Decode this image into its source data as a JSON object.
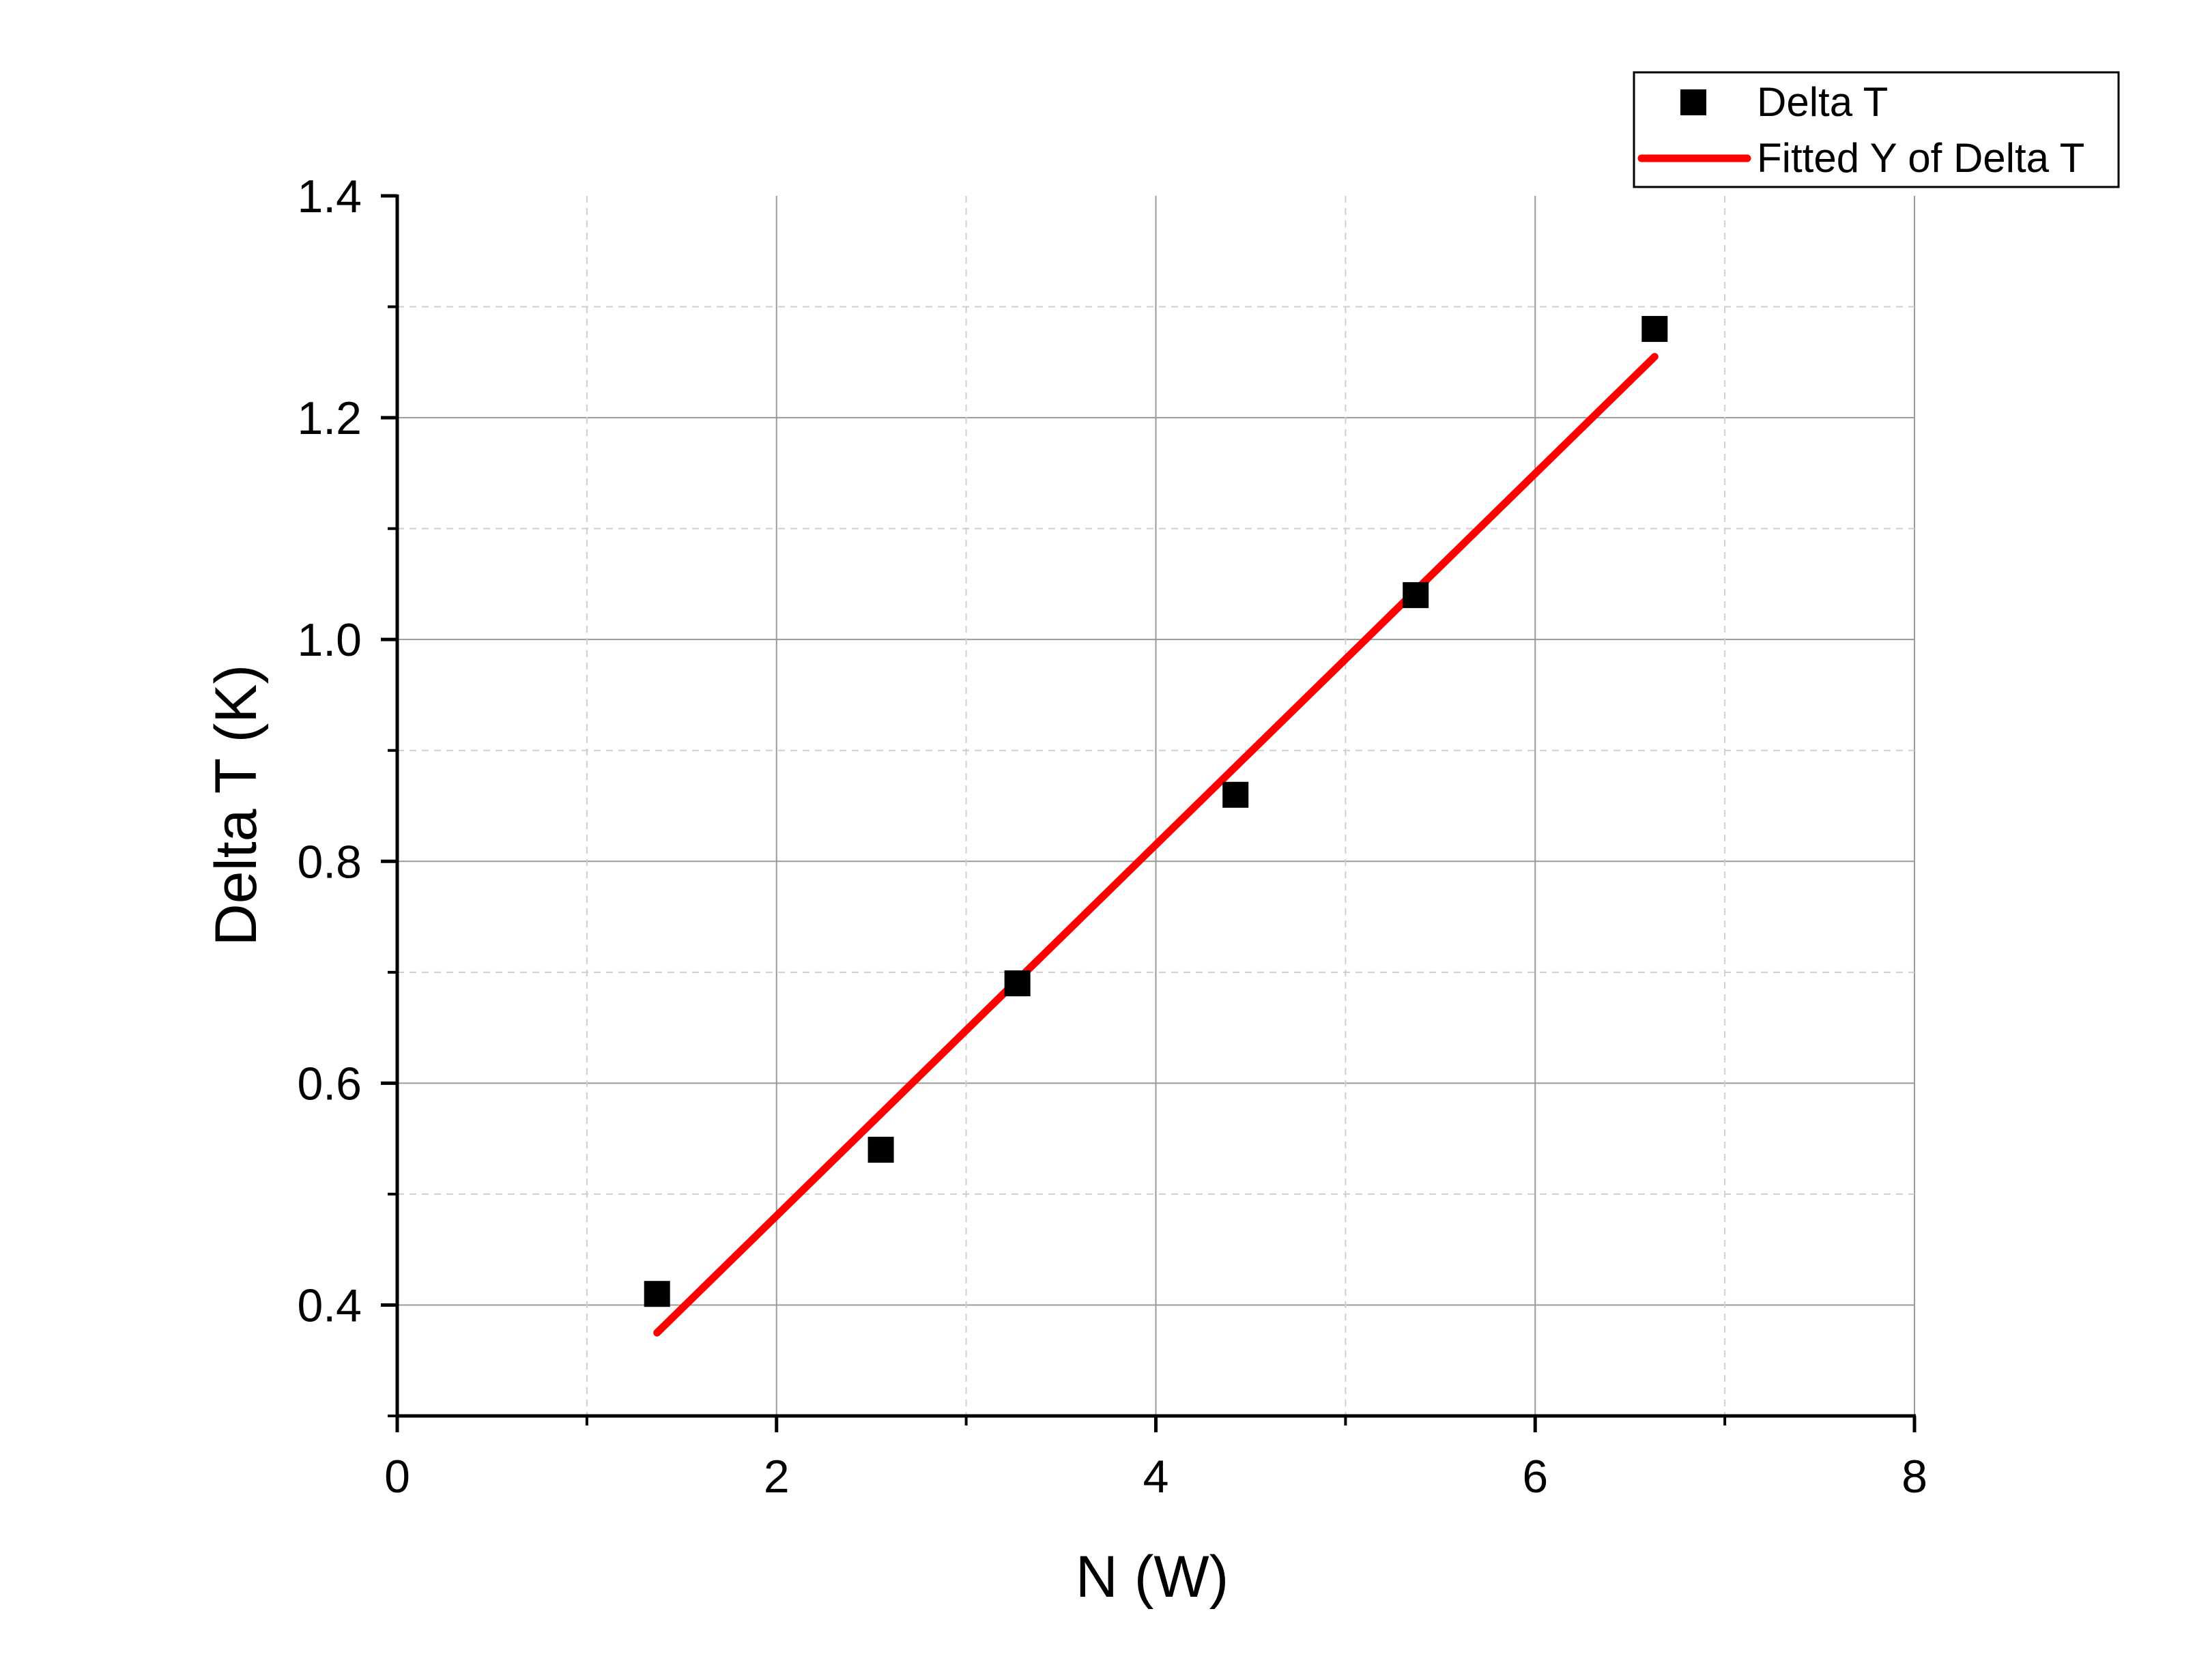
{
  "chart_data": {
    "type": "scatter",
    "title": "",
    "xlabel": "N (W)",
    "ylabel": "Delta T (K)",
    "xlim": [
      0,
      8
    ],
    "ylim": [
      0.3,
      1.4
    ],
    "x_ticks": [
      0,
      2,
      4,
      6,
      8
    ],
    "y_ticks": [
      0.4,
      0.6,
      0.8,
      1.0,
      1.2,
      1.4
    ],
    "x_tick_labels": [
      "0",
      "2",
      "4",
      "6",
      "8"
    ],
    "y_tick_labels": [
      "0.4",
      "0.6",
      "0.8",
      "1.0",
      "1.2",
      "1.4"
    ],
    "x_minor_ticks": [
      1,
      3,
      5,
      7
    ],
    "y_minor_ticks": [
      0.3,
      0.5,
      0.7,
      0.9,
      1.1,
      1.3
    ],
    "grid": true,
    "legend_position": "top-right",
    "series": [
      {
        "name": "Delta T",
        "kind": "scatter",
        "marker": "square",
        "color": "#000000",
        "points": [
          {
            "x": 1.37,
            "y": 0.41
          },
          {
            "x": 2.55,
            "y": 0.54
          },
          {
            "x": 3.27,
            "y": 0.69
          },
          {
            "x": 4.42,
            "y": 0.86
          },
          {
            "x": 5.37,
            "y": 1.04
          },
          {
            "x": 6.63,
            "y": 1.28
          }
        ]
      },
      {
        "name": "Fitted Y of Delta T",
        "kind": "line",
        "color": "#ff0000",
        "points": [
          {
            "x": 1.37,
            "y": 0.375
          },
          {
            "x": 6.63,
            "y": 1.255
          }
        ]
      }
    ]
  }
}
